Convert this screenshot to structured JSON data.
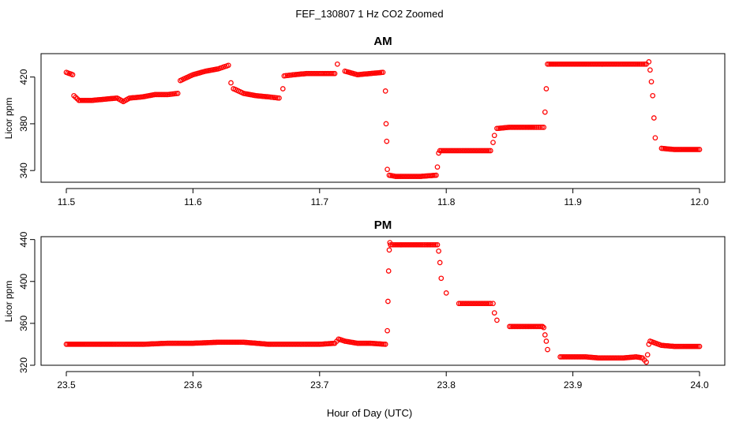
{
  "figure": {
    "title": "FEF_130807  1 Hz CO2 Zoomed",
    "xlabel": "Hour of Day (UTC)",
    "point_color": "#ff0000"
  },
  "chart_data": [
    {
      "type": "scatter",
      "title": "AM",
      "xlabel": "",
      "ylabel": "Licor ppm",
      "xlim": [
        11.5,
        12.0
      ],
      "ylim": [
        330,
        440
      ],
      "xticks": [
        11.5,
        11.6,
        11.7,
        11.8,
        11.9,
        12.0
      ],
      "xtick_labels": [
        "11.5",
        "11.6",
        "11.7",
        "11.8",
        "11.9",
        "12.0"
      ],
      "yticks": [
        340,
        380,
        420
      ],
      "ytick_labels": [
        "340",
        "380",
        "420"
      ],
      "grid": false,
      "series": [
        {
          "color": "#ff0000",
          "x": [
            11.5,
            11.505,
            11.506,
            11.51,
            11.52,
            11.53,
            11.54,
            11.545,
            11.55,
            11.56,
            11.57,
            11.58,
            11.588,
            11.59,
            11.6,
            11.61,
            11.62,
            11.628,
            11.63,
            11.632,
            11.64,
            11.65,
            11.66,
            11.668,
            11.671,
            11.672,
            11.68,
            11.69,
            11.7,
            11.712,
            11.714,
            11.72,
            11.73,
            11.74,
            11.75,
            11.752,
            11.7525,
            11.753,
            11.7535,
            11.755,
            11.76,
            11.77,
            11.78,
            11.792,
            11.793,
            11.794,
            11.795,
            11.8,
            11.81,
            11.82,
            11.835,
            11.837,
            11.838,
            11.84,
            11.85,
            11.86,
            11.87,
            11.877,
            11.878,
            11.879,
            11.88,
            11.89,
            11.9,
            11.91,
            11.92,
            11.93,
            11.94,
            11.95,
            11.958,
            11.96,
            11.961,
            11.962,
            11.963,
            11.964,
            11.965,
            11.97,
            11.98,
            11.99,
            12.0
          ],
          "y": [
            424,
            422,
            404,
            400,
            400,
            401,
            402,
            399,
            402,
            403,
            405,
            405,
            406,
            417,
            422,
            425,
            427,
            430,
            415,
            410,
            406,
            404,
            403,
            402,
            410,
            421,
            422,
            423,
            423,
            423,
            431,
            425,
            422,
            423,
            424,
            408,
            380,
            365,
            341,
            336,
            335,
            335,
            335,
            336,
            343,
            355,
            357,
            357,
            357,
            357,
            357,
            364,
            370,
            376,
            377,
            377,
            377,
            377,
            390,
            410,
            431,
            431,
            431,
            431,
            431,
            431,
            431,
            431,
            431,
            433,
            426,
            416,
            404,
            385,
            368,
            359,
            358,
            358,
            358
          ]
        }
      ]
    },
    {
      "type": "scatter",
      "title": "PM",
      "xlabel": "",
      "ylabel": "Licor ppm",
      "xlim": [
        23.5,
        24.0
      ],
      "ylim": [
        320,
        442
      ],
      "xticks": [
        23.5,
        23.6,
        23.7,
        23.8,
        23.9,
        24.0
      ],
      "xtick_labels": [
        "23.5",
        "23.6",
        "23.7",
        "23.8",
        "23.9",
        "24.0"
      ],
      "yticks": [
        320,
        360,
        400,
        440
      ],
      "ytick_labels": [
        "320",
        "360",
        "400",
        "440"
      ],
      "grid": false,
      "series": [
        {
          "color": "#ff0000",
          "x": [
            23.5,
            23.52,
            23.54,
            23.56,
            23.58,
            23.6,
            23.62,
            23.64,
            23.66,
            23.68,
            23.7,
            23.712,
            23.715,
            23.72,
            23.73,
            23.74,
            23.752,
            23.7535,
            23.754,
            23.7545,
            23.755,
            23.7555,
            23.756,
            23.76,
            23.77,
            23.78,
            23.793,
            23.794,
            23.795,
            23.796,
            23.8,
            23.81,
            23.82,
            23.835,
            23.837,
            23.838,
            23.84,
            23.85,
            23.86,
            23.87,
            23.876,
            23.877,
            23.878,
            23.879,
            23.88,
            23.89,
            23.9,
            23.91,
            23.92,
            23.93,
            23.94,
            23.95,
            23.955,
            23.958,
            23.959,
            23.96,
            23.961,
            23.97,
            23.98,
            23.99,
            24.0
          ],
          "y": [
            340,
            340,
            340,
            340,
            341,
            341,
            342,
            342,
            340,
            340,
            340,
            341,
            345,
            343,
            341,
            341,
            340,
            353,
            381,
            410,
            430,
            437,
            435,
            435,
            435,
            435,
            435,
            429,
            418,
            403,
            389,
            379,
            379,
            379,
            379,
            370,
            363,
            357,
            357,
            357,
            357,
            356,
            349,
            343,
            335,
            328,
            328,
            328,
            327,
            327,
            327,
            328,
            327,
            323,
            330,
            340,
            343,
            339,
            338,
            338,
            338
          ]
        }
      ]
    }
  ]
}
